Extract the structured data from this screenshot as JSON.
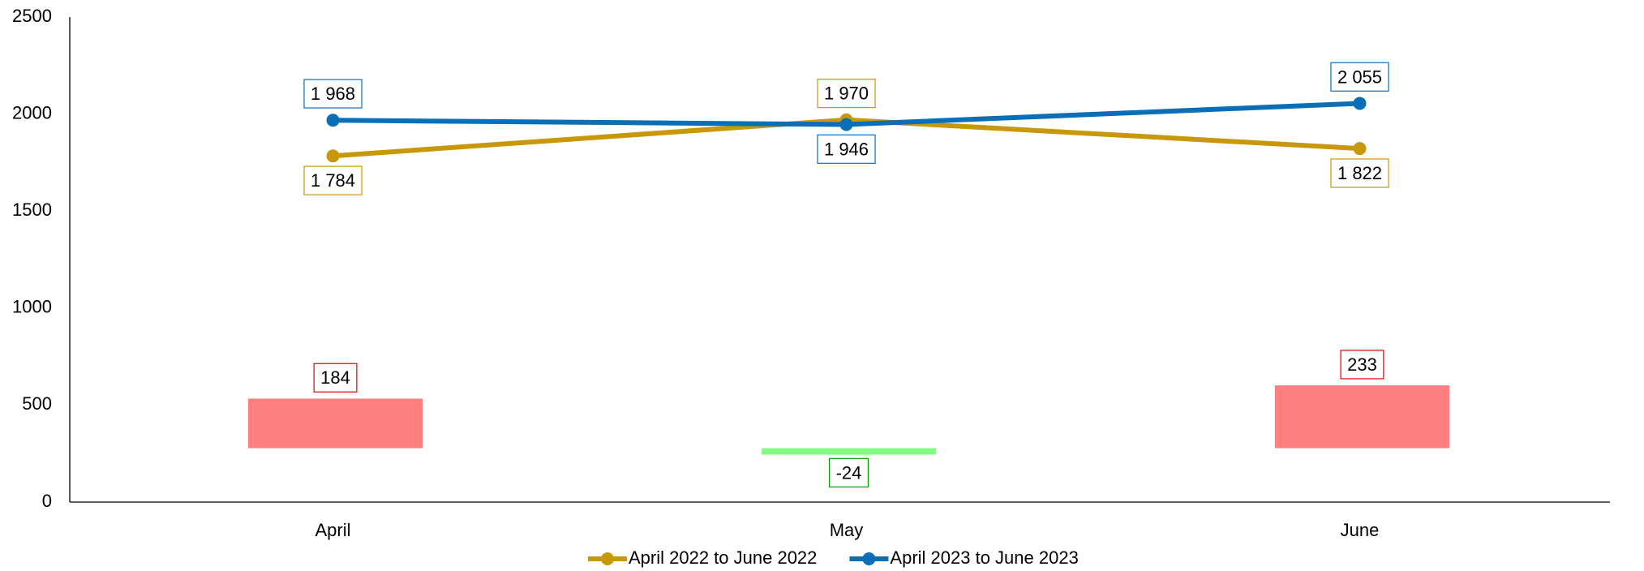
{
  "chart_data": {
    "type": "line",
    "categories": [
      "April",
      "May",
      "June"
    ],
    "series": [
      {
        "name": "April 2022 to June 2022",
        "color": "#c9980a",
        "values": [
          1784,
          1970,
          1822
        ],
        "value_labels": [
          "1 784",
          "1 970",
          "1 822"
        ]
      },
      {
        "name": "April 2023 to June 2023",
        "color": "#0b6fb8",
        "values": [
          1968,
          1946,
          2055
        ],
        "value_labels": [
          "1 968",
          "1 946",
          "2 055"
        ]
      }
    ],
    "bars": {
      "type": "bar",
      "axis": "y2",
      "values": [
        184,
        -24,
        233
      ],
      "positive_color": "#ff8080",
      "negative_color": "#80ff80",
      "positive_label_color": "#e00000",
      "negative_label_color": "#00a000"
    },
    "ylim": [
      0,
      2500
    ],
    "yticks": [
      0,
      500,
      1000,
      1500,
      2000,
      2500
    ],
    "y2lim": [
      -200,
      1600
    ],
    "grid": false,
    "legend": "bottom"
  }
}
